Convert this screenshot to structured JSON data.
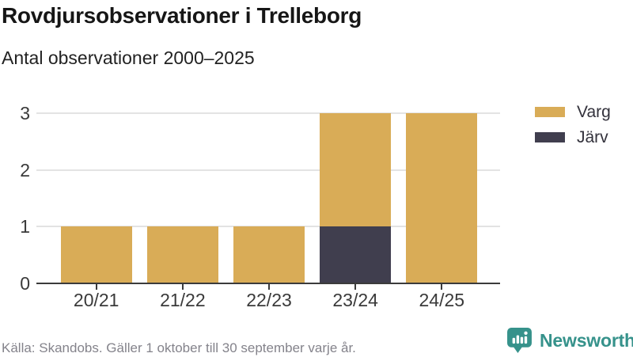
{
  "header": {
    "title": "Rovdjursobservationer i Trelleborg",
    "subtitle": "Antal observationer 2000–2025"
  },
  "chart_data": {
    "type": "bar",
    "stacked": true,
    "title": "Rovdjursobservationer i Trelleborg",
    "subtitle": "Antal observationer 2000–2025",
    "categories": [
      "20/21",
      "21/22",
      "22/23",
      "23/24",
      "24/25"
    ],
    "series": [
      {
        "name": "Varg",
        "color": "#d9ac57",
        "values": [
          1,
          1,
          1,
          2,
          3
        ]
      },
      {
        "name": "Järv",
        "color": "#403e4e",
        "values": [
          0,
          0,
          0,
          1,
          0
        ]
      }
    ],
    "xlabel": "",
    "ylabel": "",
    "yticks": [
      0,
      1,
      2,
      3
    ],
    "ylim": [
      0,
      3
    ],
    "grid": true,
    "legend_position": "top-right",
    "stack_order_bottom_to_top": [
      "Järv",
      "Varg"
    ]
  },
  "footer": {
    "source": "Källa: Skandobs. Gäller 1 oktober till 30 september varje år.",
    "brand": "Newsworthy",
    "brand_color": "#36928b"
  }
}
